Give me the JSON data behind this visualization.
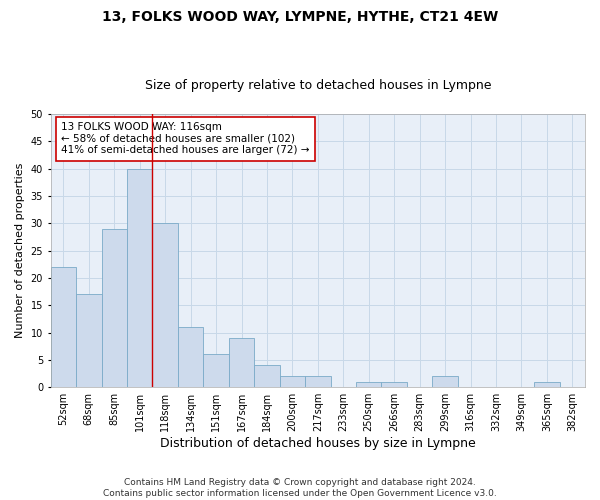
{
  "title": "13, FOLKS WOOD WAY, LYMPNE, HYTHE, CT21 4EW",
  "subtitle": "Size of property relative to detached houses in Lympne",
  "xlabel": "Distribution of detached houses by size in Lympne",
  "ylabel": "Number of detached properties",
  "categories": [
    "52sqm",
    "68sqm",
    "85sqm",
    "101sqm",
    "118sqm",
    "134sqm",
    "151sqm",
    "167sqm",
    "184sqm",
    "200sqm",
    "217sqm",
    "233sqm",
    "250sqm",
    "266sqm",
    "283sqm",
    "299sqm",
    "316sqm",
    "332sqm",
    "349sqm",
    "365sqm",
    "382sqm"
  ],
  "values": [
    22,
    17,
    29,
    40,
    30,
    11,
    6,
    9,
    4,
    2,
    2,
    0,
    1,
    1,
    0,
    2,
    0,
    0,
    0,
    1,
    0
  ],
  "bar_color": "#cddaec",
  "bar_edge_color": "#7aaac8",
  "vline_x_index": 3.5,
  "vline_color": "#cc0000",
  "annotation_text": "13 FOLKS WOOD WAY: 116sqm\n← 58% of detached houses are smaller (102)\n41% of semi-detached houses are larger (72) →",
  "annotation_box_color": "#ffffff",
  "annotation_box_edge_color": "#cc0000",
  "annotation_fontsize": 7.5,
  "ylim": [
    0,
    50
  ],
  "yticks": [
    0,
    5,
    10,
    15,
    20,
    25,
    30,
    35,
    40,
    45,
    50
  ],
  "title_fontsize": 10,
  "subtitle_fontsize": 9,
  "xlabel_fontsize": 9,
  "ylabel_fontsize": 8,
  "tick_fontsize": 7,
  "footer": "Contains HM Land Registry data © Crown copyright and database right 2024.\nContains public sector information licensed under the Open Government Licence v3.0.",
  "footer_fontsize": 6.5,
  "bg_color": "#ffffff",
  "grid_color": "#c8d8e8",
  "ax_bg_color": "#e8eff8"
}
